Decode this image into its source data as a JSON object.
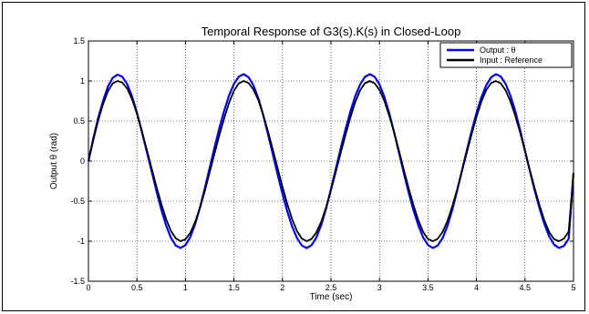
{
  "chart_data": {
    "type": "line",
    "title": "Temporal Response of G3(s).K(s) in Closed-Loop",
    "xlabel": "Time (sec)",
    "ylabel": "Output θ (rad)",
    "xlim": [
      0,
      5
    ],
    "ylim": [
      -1.5,
      1.5
    ],
    "xticks": [
      0,
      0.5,
      1,
      1.5,
      2,
      2.5,
      3,
      3.5,
      4,
      4.5,
      5
    ],
    "yticks": [
      1.5,
      1,
      0.5,
      0,
      -0.5,
      -1,
      -1.5
    ],
    "xtick_labels": [
      "0",
      "0.5",
      "1",
      "1.5",
      "2",
      "2.5",
      "3",
      "3.5",
      "4",
      "4.5",
      "5"
    ],
    "ytick_labels": [
      "1.5",
      "1",
      "0.5",
      "0",
      "-0.5",
      "-1",
      "-1.5"
    ],
    "grid": "dotted",
    "legend_position": "top-right",
    "series": [
      {
        "name": "Output : θ",
        "color": "#0000ff",
        "x": [
          0,
          0.05,
          0.1,
          0.15,
          0.2,
          0.25,
          0.3,
          0.35,
          0.4,
          0.45,
          0.5,
          0.55,
          0.6,
          0.65,
          0.7,
          0.75,
          0.8,
          0.85,
          0.9,
          0.95,
          1.0,
          1.05,
          1.1,
          1.15,
          1.2,
          1.25,
          1.3,
          1.35,
          1.4,
          1.45,
          1.5,
          1.55,
          1.6,
          1.65,
          1.7,
          1.75,
          1.8,
          1.85,
          1.9,
          1.95,
          2.0,
          2.05,
          2.1,
          2.15,
          2.2,
          2.25,
          2.3,
          2.35,
          2.4,
          2.45,
          2.5,
          2.55,
          2.6,
          2.65,
          2.7,
          2.75,
          2.8,
          2.85,
          2.9,
          2.95,
          3.0,
          3.05,
          3.1,
          3.15,
          3.2,
          3.25,
          3.3,
          3.35,
          3.4,
          3.45,
          3.5,
          3.55,
          3.6,
          3.65,
          3.7,
          3.75,
          3.8,
          3.85,
          3.9,
          3.95,
          4.0,
          4.05,
          4.1,
          4.15,
          4.2,
          4.25,
          4.3,
          4.35,
          4.4,
          4.45,
          4.5,
          4.55,
          4.6,
          4.65,
          4.7,
          4.75,
          4.8,
          4.85,
          4.9,
          4.95,
          5.0
        ],
        "y": [
          0.0,
          0.279,
          0.536,
          0.75,
          0.928,
          1.04,
          1.08,
          1.053,
          0.958,
          0.805,
          0.604,
          0.372,
          0.126,
          -0.121,
          -0.369,
          -0.599,
          -0.8,
          -0.956,
          -1.055,
          -1.085,
          -1.048,
          -0.948,
          -0.786,
          -0.577,
          -0.336,
          -0.082,
          0.171,
          0.413,
          0.633,
          0.822,
          0.965,
          1.055,
          1.085,
          1.048,
          0.948,
          0.789,
          0.582,
          0.341,
          0.087,
          -0.166,
          -0.408,
          -0.628,
          -0.816,
          -0.962,
          -1.054,
          -1.085,
          -1.05,
          -0.952,
          -0.795,
          -0.59,
          -0.35,
          -0.097,
          0.156,
          0.398,
          0.619,
          0.809,
          0.957,
          1.051,
          1.085,
          1.053,
          0.958,
          0.803,
          0.6,
          0.362,
          0.11,
          -0.144,
          -0.388,
          -0.61,
          -0.802,
          -0.952,
          -1.048,
          -1.085,
          -1.055,
          -0.962,
          -0.81,
          -0.609,
          -0.372,
          -0.12,
          0.133,
          0.377,
          0.6,
          0.794,
          0.946,
          1.045,
          1.085,
          1.057,
          0.966,
          0.818,
          0.619,
          0.384,
          0.131,
          -0.121,
          -0.366,
          -0.591,
          -0.787,
          -0.941,
          -1.042,
          -1.085,
          -1.059,
          -0.97,
          -0.15
        ]
      },
      {
        "name": "Input : Reference",
        "color": "#000000",
        "x": [
          0,
          0.05,
          0.1,
          0.15,
          0.2,
          0.25,
          0.3,
          0.35,
          0.4,
          0.45,
          0.5,
          0.55,
          0.6,
          0.65,
          0.7,
          0.75,
          0.8,
          0.85,
          0.9,
          0.95,
          1.0,
          1.05,
          1.1,
          1.15,
          1.2,
          1.25,
          1.3,
          1.35,
          1.4,
          1.45,
          1.5,
          1.55,
          1.6,
          1.65,
          1.7,
          1.75,
          1.8,
          1.85,
          1.9,
          1.95,
          2.0,
          2.05,
          2.1,
          2.15,
          2.2,
          2.25,
          2.3,
          2.35,
          2.4,
          2.45,
          2.5,
          2.55,
          2.6,
          2.65,
          2.7,
          2.75,
          2.8,
          2.85,
          2.9,
          2.95,
          3.0,
          3.05,
          3.1,
          3.15,
          3.2,
          3.25,
          3.3,
          3.35,
          3.4,
          3.45,
          3.5,
          3.55,
          3.6,
          3.65,
          3.7,
          3.75,
          3.8,
          3.85,
          3.9,
          3.95,
          4.0,
          4.05,
          4.1,
          4.15,
          4.2,
          4.25,
          4.3,
          4.35,
          4.4,
          4.45,
          4.5,
          4.55,
          4.6,
          4.65,
          4.7,
          4.75,
          4.8,
          4.85,
          4.9,
          4.95,
          5.0
        ],
        "y": [
          0.0,
          0.26,
          0.502,
          0.71,
          0.87,
          0.97,
          1.0,
          0.98,
          0.905,
          0.77,
          0.59,
          0.38,
          0.15,
          -0.085,
          -0.315,
          -0.53,
          -0.72,
          -0.87,
          -0.965,
          -1.0,
          -0.975,
          -0.895,
          -0.76,
          -0.58,
          -0.37,
          -0.14,
          0.095,
          0.325,
          0.54,
          0.73,
          0.88,
          0.97,
          1.0,
          0.975,
          0.895,
          0.765,
          0.585,
          0.375,
          0.145,
          -0.09,
          -0.32,
          -0.535,
          -0.725,
          -0.875,
          -0.968,
          -1.0,
          -0.972,
          -0.89,
          -0.755,
          -0.575,
          -0.365,
          -0.135,
          0.1,
          0.33,
          0.545,
          0.735,
          0.882,
          0.972,
          1.0,
          0.972,
          0.888,
          0.752,
          0.572,
          0.362,
          0.132,
          -0.103,
          -0.333,
          -0.548,
          -0.738,
          -0.884,
          -0.973,
          -1.0,
          -0.97,
          -0.885,
          -0.748,
          -0.568,
          -0.358,
          -0.128,
          0.107,
          0.337,
          0.552,
          0.74,
          0.886,
          0.974,
          1.0,
          0.97,
          0.884,
          0.746,
          0.565,
          0.355,
          0.125,
          -0.11,
          -0.34,
          -0.555,
          -0.743,
          -0.888,
          -0.975,
          -1.0,
          -0.968,
          -0.88,
          -0.15
        ]
      }
    ]
  }
}
